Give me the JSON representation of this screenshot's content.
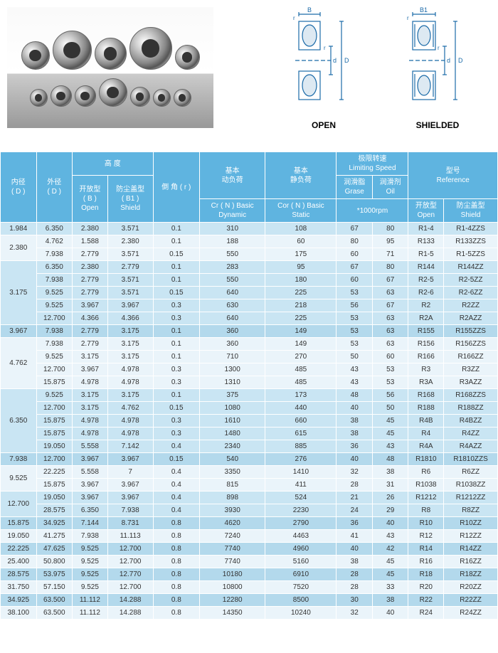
{
  "diagrams": {
    "open_label": "OPEN",
    "shielded_label": "SHIELDED",
    "dims": [
      "B",
      "B1",
      "r",
      "d",
      "D"
    ]
  },
  "table": {
    "headers": {
      "inner_d": "内径\n( D )",
      "outer_d": "外径\n( D )",
      "height_group": "高 度",
      "open_h": "开放型\n( B )\nOpen",
      "shield_h": "防尘盖型\n( B1 )\nShield",
      "chamfer": "倒 角 ( r )",
      "dynamic": "基本\n动负荷",
      "dynamic_sub": "Cr ( N ) Basic\nDynamic",
      "static": "基本\n静负荷",
      "static_sub": "Cor ( N ) Basic\nStatic",
      "speed_group": "极限转速\nLimiting Speed",
      "grease": "润滑脂\nGrase",
      "oil": "润滑剂\nOil",
      "speed_unit": "*1000rpm",
      "ref_group": "型号\nReference",
      "ref_open": "开放型\nOpen",
      "ref_shield": "防尘盖型\nShield"
    },
    "colors": {
      "header_bg": "#5fb4e0",
      "row_light": "#eaf4fa",
      "row_alt": "#c9e5f3",
      "row_dark": "#b3d9ec"
    },
    "groups": [
      {
        "d": "1.984",
        "shade": "alt",
        "rows": [
          [
            "6.350",
            "2.380",
            "3.571",
            "0.1",
            "310",
            "108",
            "67",
            "80",
            "R1-4",
            "R1-4ZZS"
          ]
        ]
      },
      {
        "d": "2.380",
        "shade": "light",
        "rows": [
          [
            "4.762",
            "1.588",
            "2.380",
            "0.1",
            "188",
            "60",
            "80",
            "95",
            "R133",
            "R133ZZS"
          ],
          [
            "7.938",
            "2.779",
            "3.571",
            "0.15",
            "550",
            "175",
            "60",
            "71",
            "R1-5",
            "R1-5ZZS"
          ]
        ]
      },
      {
        "d": "3.175",
        "shade": "alt",
        "rows": [
          [
            "6.350",
            "2.380",
            "2.779",
            "0.1",
            "283",
            "95",
            "67",
            "80",
            "R144",
            "R144ZZ"
          ],
          [
            "7.938",
            "2.779",
            "3.571",
            "0.1",
            "550",
            "180",
            "60",
            "67",
            "R2-5",
            "R2-5ZZ"
          ],
          [
            "9.525",
            "2.779",
            "3.571",
            "0.15",
            "640",
            "225",
            "53",
            "63",
            "R2-6",
            "R2-6ZZ"
          ],
          [
            "9.525",
            "3.967",
            "3.967",
            "0.3",
            "630",
            "218",
            "56",
            "67",
            "R2",
            "R2ZZ"
          ],
          [
            "12.700",
            "4.366",
            "4.366",
            "0.3",
            "640",
            "225",
            "53",
            "63",
            "R2A",
            "R2AZZ"
          ]
        ]
      },
      {
        "d": "3.967",
        "shade": "dark",
        "rows": [
          [
            "7.938",
            "2.779",
            "3.175",
            "0.1",
            "360",
            "149",
            "53",
            "63",
            "R155",
            "R155ZZS"
          ]
        ]
      },
      {
        "d": "4.762",
        "shade": "light",
        "rows": [
          [
            "7.938",
            "2.779",
            "3.175",
            "0.1",
            "360",
            "149",
            "53",
            "63",
            "R156",
            "R156ZZS"
          ],
          [
            "9.525",
            "3.175",
            "3.175",
            "0.1",
            "710",
            "270",
            "50",
            "60",
            "R166",
            "R166ZZ"
          ],
          [
            "12.700",
            "3.967",
            "4.978",
            "0.3",
            "1300",
            "485",
            "43",
            "53",
            "R3",
            "R3ZZ"
          ],
          [
            "15.875",
            "4.978",
            "4.978",
            "0.3",
            "1310",
            "485",
            "43",
            "53",
            "R3A",
            "R3AZZ"
          ]
        ]
      },
      {
        "d": "6.350",
        "shade": "alt",
        "rows": [
          [
            "9.525",
            "3.175",
            "3.175",
            "0.1",
            "375",
            "173",
            "48",
            "56",
            "R168",
            "R168ZZS"
          ],
          [
            "12.700",
            "3.175",
            "4.762",
            "0.15",
            "1080",
            "440",
            "40",
            "50",
            "R188",
            "R188ZZ"
          ],
          [
            "15.875",
            "4.978",
            "4.978",
            "0.3",
            "1610",
            "660",
            "38",
            "45",
            "R4B",
            "R4BZZ"
          ],
          [
            "15.875",
            "4.978",
            "4.978",
            "0.3",
            "1480",
            "615",
            "38",
            "45",
            "R4",
            "R4ZZ"
          ],
          [
            "19.050",
            "5.558",
            "7.142",
            "0.4",
            "2340",
            "885",
            "36",
            "43",
            "R4A",
            "R4AZZ"
          ]
        ]
      },
      {
        "d": "7.938",
        "shade": "dark",
        "rows": [
          [
            "12.700",
            "3.967",
            "3.967",
            "0.15",
            "540",
            "276",
            "40",
            "48",
            "R1810",
            "R1810ZZS"
          ]
        ]
      },
      {
        "d": "9.525",
        "shade": "light",
        "rows": [
          [
            "22.225",
            "5.558",
            "7",
            "0.4",
            "3350",
            "1410",
            "32",
            "38",
            "R6",
            "R6ZZ"
          ],
          [
            "15.875",
            "3.967",
            "3.967",
            "0.4",
            "815",
            "411",
            "28",
            "31",
            "R1038",
            "R1038ZZ"
          ]
        ]
      },
      {
        "d": "12.700",
        "shade": "alt",
        "rows": [
          [
            "19.050",
            "3.967",
            "3.967",
            "0.4",
            "898",
            "524",
            "21",
            "26",
            "R1212",
            "R1212ZZ"
          ],
          [
            "28.575",
            "6.350",
            "7.938",
            "0.4",
            "3930",
            "2230",
            "24",
            "29",
            "R8",
            "R8ZZ"
          ]
        ]
      },
      {
        "d": "15.875",
        "shade": "dark",
        "rows": [
          [
            "34.925",
            "7.144",
            "8.731",
            "0.8",
            "4620",
            "2790",
            "36",
            "40",
            "R10",
            "R10ZZ"
          ]
        ]
      },
      {
        "d": "19.050",
        "shade": "light",
        "rows": [
          [
            "41.275",
            "7.938",
            "11.113",
            "0.8",
            "7240",
            "4463",
            "41",
            "43",
            "R12",
            "R12ZZ"
          ]
        ]
      },
      {
        "d": "22.225",
        "shade": "dark",
        "rows": [
          [
            "47.625",
            "9.525",
            "12.700",
            "0.8",
            "7740",
            "4960",
            "40",
            "42",
            "R14",
            "R14ZZ"
          ]
        ]
      },
      {
        "d": "25.400",
        "shade": "light",
        "rows": [
          [
            "50.800",
            "9.525",
            "12.700",
            "0.8",
            "7740",
            "5160",
            "38",
            "45",
            "R16",
            "R16ZZ"
          ]
        ]
      },
      {
        "d": "28.575",
        "shade": "dark",
        "rows": [
          [
            "53.975",
            "9.525",
            "12.770",
            "0.8",
            "10180",
            "6910",
            "28",
            "45",
            "R18",
            "R18ZZ"
          ]
        ]
      },
      {
        "d": "31.750",
        "shade": "light",
        "rows": [
          [
            "57.150",
            "9.525",
            "12.700",
            "0.8",
            "10800",
            "7520",
            "28",
            "33",
            "R20",
            "R20ZZ"
          ]
        ]
      },
      {
        "d": "34.925",
        "shade": "dark",
        "rows": [
          [
            "63.500",
            "11.112",
            "14.288",
            "0.8",
            "12280",
            "8500",
            "30",
            "38",
            "R22",
            "R22ZZ"
          ]
        ]
      },
      {
        "d": "38.100",
        "shade": "light",
        "rows": [
          [
            "63.500",
            "11.112",
            "14.288",
            "0.8",
            "14350",
            "10240",
            "32",
            "40",
            "R24",
            "R24ZZ"
          ]
        ]
      }
    ]
  }
}
